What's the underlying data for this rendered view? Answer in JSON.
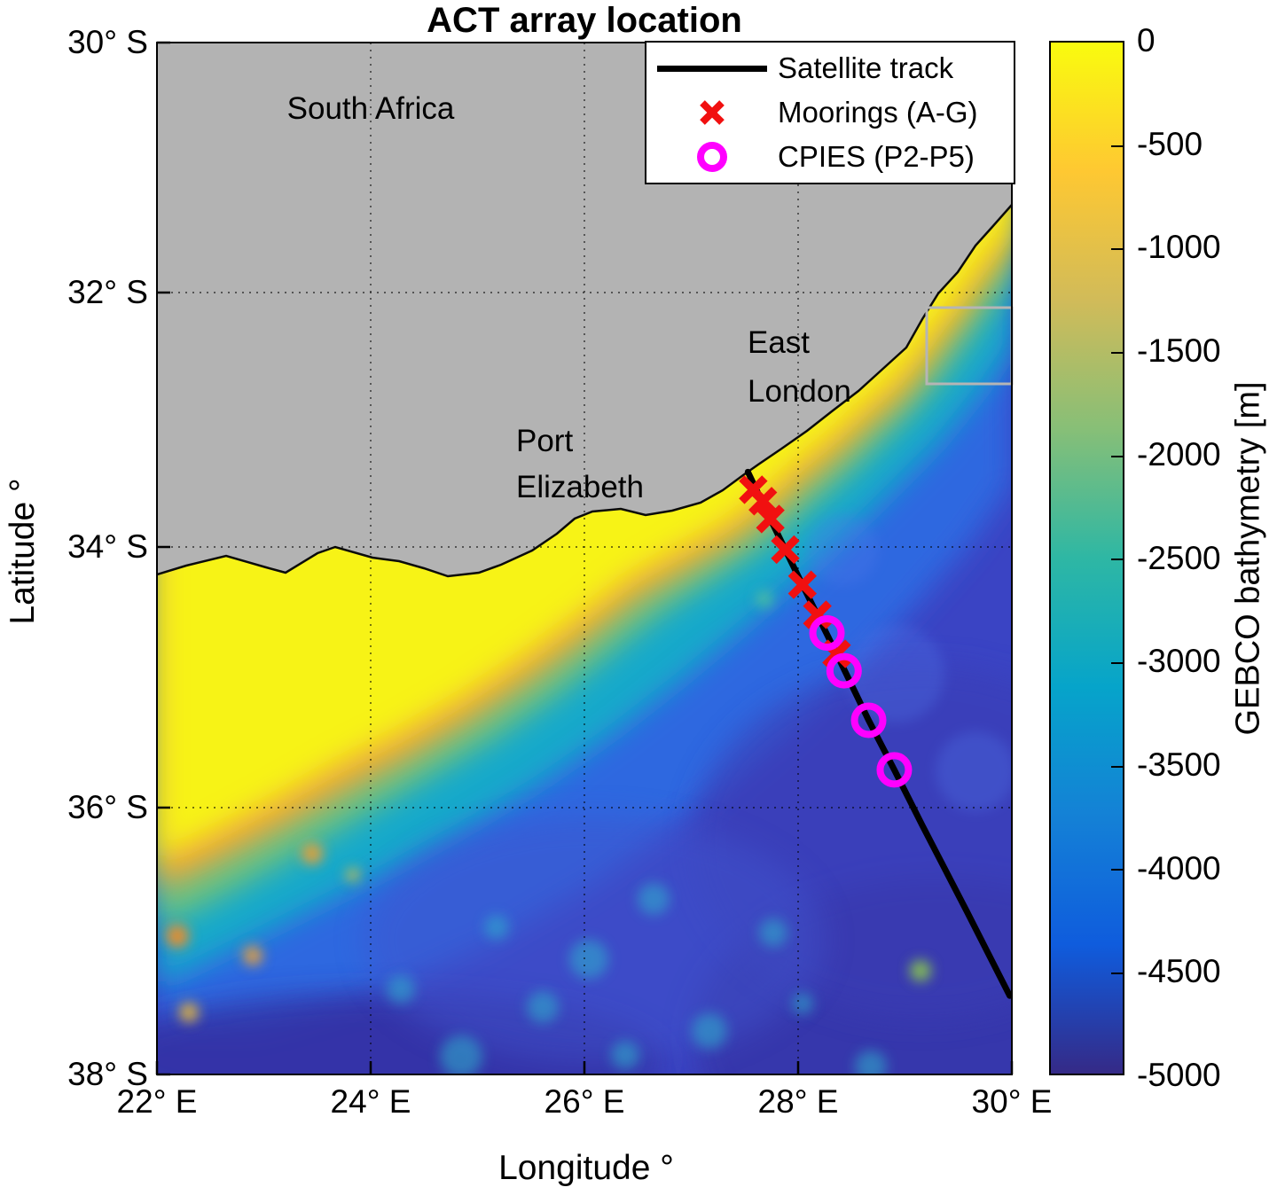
{
  "title": "ACT array location",
  "axes": {
    "xlabel": "Longitude °",
    "ylabel": "Latitude °",
    "x_ticks": [
      "22° E",
      "24° E",
      "26° E",
      "28° E",
      "30° E"
    ],
    "y_ticks": [
      "30° S",
      "32° S",
      "34° S",
      "36° S",
      "38° S"
    ]
  },
  "map_text": {
    "country": "South Africa",
    "city1_line1": "East",
    "city1_line2": "London",
    "city2_line1": "Port",
    "city2_line2": "Elizabeth"
  },
  "legend": {
    "items": [
      {
        "label": "Satellite track",
        "marker": "line",
        "color": "#000000"
      },
      {
        "label": "Moorings (A-G)",
        "marker": "x",
        "color": "#f11010"
      },
      {
        "label": "CPIES (P2-P5)",
        "marker": "circle",
        "color": "#ff00ff"
      }
    ]
  },
  "colorbar": {
    "label": "GEBCO bathymetry [m]",
    "ticks": [
      "0",
      "-500",
      "-1000",
      "-1500",
      "-2000",
      "-2500",
      "-3000",
      "-3500",
      "-4000",
      "-4500",
      "-5000"
    ]
  },
  "chart_data": {
    "type": "map",
    "title": "ACT array location",
    "xlabel": "Longitude °",
    "ylabel": "Latitude °",
    "lon_range": [
      22,
      30
    ],
    "lat_range": [
      -38,
      -30
    ],
    "lon_ticks": [
      22,
      24,
      26,
      28,
      30
    ],
    "lat_ticks": [
      -30,
      -32,
      -34,
      -36,
      -38
    ],
    "grid": "dotted",
    "land_label": "South Africa",
    "cities": [
      {
        "name": "Port Elizabeth",
        "lon": 25.4,
        "lat": -33.1
      },
      {
        "name": "East London",
        "lon": 27.6,
        "lat": -32.4
      }
    ],
    "colorbar": {
      "label": "GEBCO bathymetry [m]",
      "max": 0,
      "min": -5000,
      "tick_interval": 500,
      "colormap": "parula (yellow = shallow, dark blue = deep)"
    },
    "satellite_track": {
      "lon": [
        27.53,
        27.74,
        28.04,
        28.36,
        28.66,
        28.9,
        29.16,
        29.58,
        29.98
      ],
      "lat": [
        -33.41,
        -33.78,
        -34.29,
        -34.82,
        -35.33,
        -35.71,
        -36.13,
        -36.78,
        -37.41
      ]
    },
    "moorings": {
      "legend": "Moorings (A-G)",
      "marker": "x",
      "color": "#f11010",
      "lon": [
        27.58,
        27.67,
        27.74,
        27.88,
        28.04,
        28.18,
        28.36
      ],
      "lat": [
        -33.55,
        -33.64,
        -33.78,
        -34.02,
        -34.29,
        -34.52,
        -34.82
      ]
    },
    "cpies": {
      "legend": "CPIES (P2-P5)",
      "marker": "o",
      "color": "#ff00ff",
      "lon": [
        28.27,
        28.43,
        28.66,
        28.9
      ],
      "lat": [
        -34.66,
        -34.95,
        -35.33,
        -35.71
      ]
    }
  }
}
